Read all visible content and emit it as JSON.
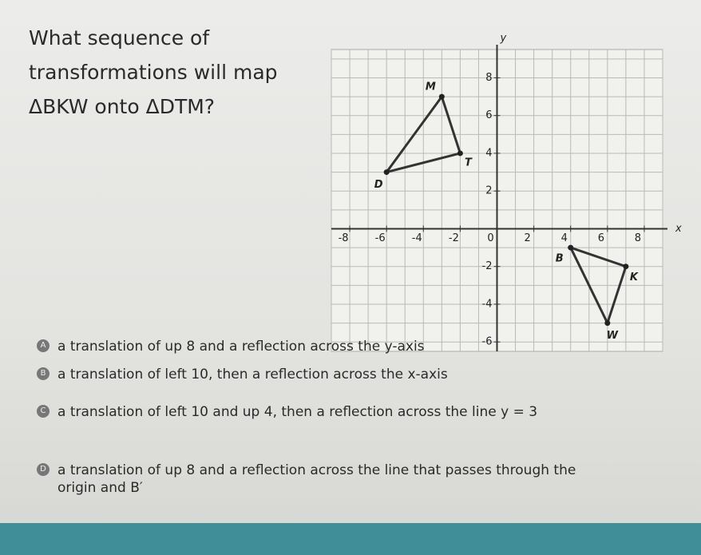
{
  "question": "What sequence of transformations will map ΔBKW onto ΔDTM?",
  "graph": {
    "x_label": "x",
    "y_label": "y",
    "xlim": [
      -9,
      9
    ],
    "ylim": [
      -6.5,
      9.5
    ],
    "xticks": [
      -8,
      -6,
      -4,
      -2,
      0,
      2,
      4,
      6,
      8
    ],
    "yticks": [
      8,
      6,
      4,
      2,
      -2,
      -4,
      -6
    ],
    "points": [
      {
        "label": "B",
        "x": 4,
        "y": -1
      },
      {
        "label": "K",
        "x": 7,
        "y": -2
      },
      {
        "label": "W",
        "x": 6,
        "y": -5
      },
      {
        "label": "D",
        "x": -6,
        "y": 3
      },
      {
        "label": "T",
        "x": -2,
        "y": 4
      },
      {
        "label": "M",
        "x": -3,
        "y": 7
      }
    ]
  },
  "options": [
    {
      "letter": "A",
      "text": "a translation of up 8 and a reflection across the y-axis"
    },
    {
      "letter": "B",
      "text": "a translation of left 10, then a reflection across the x-axis"
    },
    {
      "letter": "C",
      "text": "a translation of left 10 and up 4, then a reflection across the line y = 3"
    },
    {
      "letter": "D",
      "text": "a translation of up 8 and a reflection across the line that passes through the origin and B′"
    }
  ]
}
